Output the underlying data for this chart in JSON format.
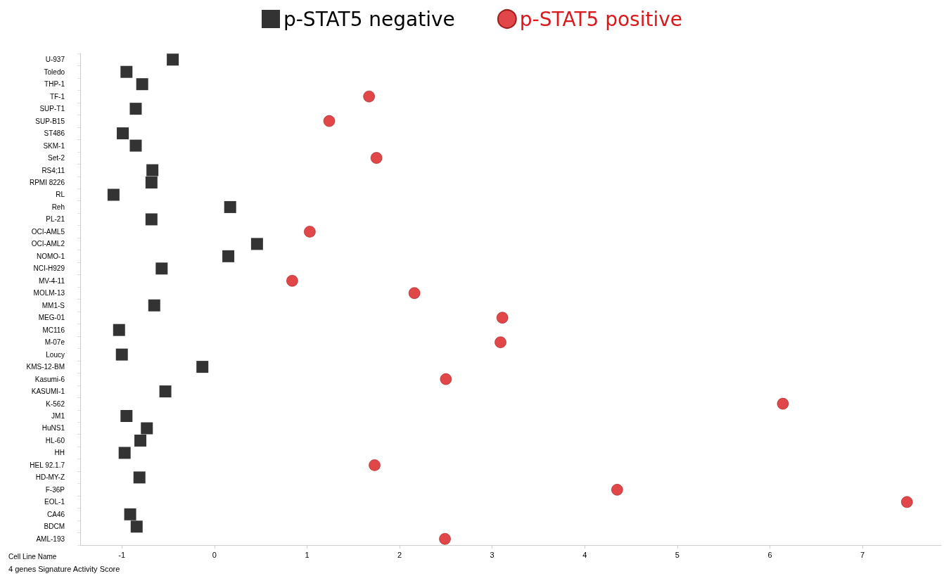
{
  "chart_data": {
    "type": "scatter",
    "xlabel": "4 genes Signature Activity Score",
    "ylabel": "Cell Line Name",
    "categories": [
      "U-937",
      "Toledo",
      "THP-1",
      "TF-1",
      "SUP-T1",
      "SUP-B15",
      "ST486",
      "SKM-1",
      "Set-2",
      "RS4;11",
      "RPMI 8226",
      "RL",
      "Reh",
      "PL-21",
      "OCI-AML5",
      "OCI-AML2",
      "NOMO-1",
      "NCI-H929",
      "MV-4-11",
      "MOLM-13",
      "MM1-S",
      "MEG-01",
      "MC116",
      "M-07e",
      "Loucy",
      "KMS-12-BM",
      "Kasumi-6",
      "KASUMI-1",
      "K-562",
      "JM1",
      "HuNS1",
      "HL-60",
      "HH",
      "HEL 92.1.7",
      "HD-MY-Z",
      "F-36P",
      "EOL-1",
      "CA46",
      "BDCM",
      "AML-193"
    ],
    "series": [
      {
        "name": "p-STAT5 negative",
        "color": "#000000",
        "marker": "square",
        "values": [
          -0.45,
          -0.95,
          -0.78,
          null,
          -0.85,
          null,
          -0.99,
          -0.85,
          null,
          -0.67,
          -0.68,
          -1.09,
          0.17,
          -0.68,
          null,
          0.46,
          0.15,
          -0.57,
          null,
          null,
          -0.65,
          null,
          -1.03,
          null,
          -1.0,
          -0.13,
          null,
          -0.53,
          null,
          -0.95,
          -0.73,
          -0.8,
          -0.97,
          null,
          -0.81,
          null,
          null,
          -0.91,
          -0.84,
          null
        ]
      },
      {
        "name": "p-STAT5 positive",
        "color": "#d9191c",
        "marker": "circle",
        "values": [
          null,
          null,
          null,
          1.67,
          null,
          1.24,
          null,
          null,
          1.75,
          null,
          null,
          null,
          null,
          null,
          1.03,
          null,
          null,
          null,
          0.84,
          2.16,
          null,
          3.11,
          null,
          3.09,
          null,
          null,
          2.5,
          null,
          6.14,
          null,
          null,
          null,
          null,
          1.73,
          null,
          4.35,
          7.48,
          null,
          null,
          2.49
        ]
      }
    ],
    "orientation": "horizontal",
    "xlim": [
      -1.45,
      7.85
    ],
    "xticks": [
      -1,
      0,
      1,
      2,
      3,
      4,
      5,
      6,
      7
    ],
    "grid": false,
    "legend": "top"
  }
}
